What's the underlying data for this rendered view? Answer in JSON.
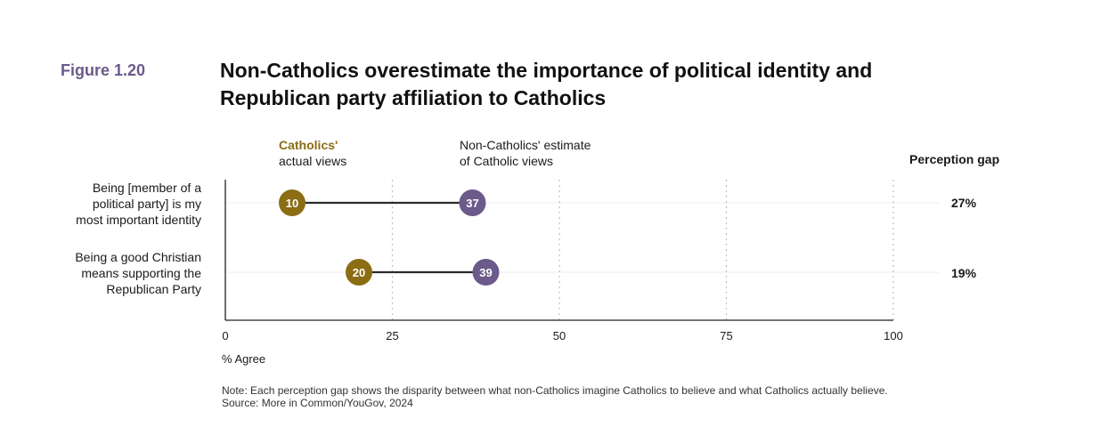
{
  "figure_label": "Figure 1.20",
  "colors": {
    "catholic": "#8b6d14",
    "non_catholic": "#6b5a8a",
    "line": "#2a2a2a",
    "grid": "#bdbdbd"
  },
  "legend": {
    "catholic_bold": "Catholics'",
    "catholic_rest": "actual views",
    "non_catholic_line1": "Non-Catholics' estimate",
    "non_catholic_line2": "of Catholic views"
  },
  "gap_header": "Perception gap",
  "axis_title": "% Agree",
  "note_line1": "Note: Each perception gap shows the disparity between what non-Catholics imagine Catholics to believe and what Catholics actually believe.",
  "note_source": "Source: More in Common/YouGov, 2024",
  "chart_data": {
    "type": "dumbbell",
    "title": "Non-Catholics overestimate the importance of political identity and Republican party affiliation to Catholics",
    "xlabel": "% Agree",
    "xlim": [
      0,
      100
    ],
    "xticks": [
      0,
      25,
      50,
      75,
      100
    ],
    "categories": [
      {
        "label_lines": [
          "Being [member of a",
          "political party] is my",
          "most important identity"
        ],
        "catholics": 10,
        "non_catholics_estimate": 37,
        "gap": "27%"
      },
      {
        "label_lines": [
          "Being a good Christian",
          "means supporting the",
          "Republican Party"
        ],
        "catholics": 20,
        "non_catholics_estimate": 39,
        "gap": "19%"
      }
    ],
    "series": [
      {
        "name": "Catholics' actual views",
        "values": [
          10,
          20
        ]
      },
      {
        "name": "Non-Catholics' estimate of Catholic views",
        "values": [
          37,
          39
        ]
      }
    ]
  }
}
